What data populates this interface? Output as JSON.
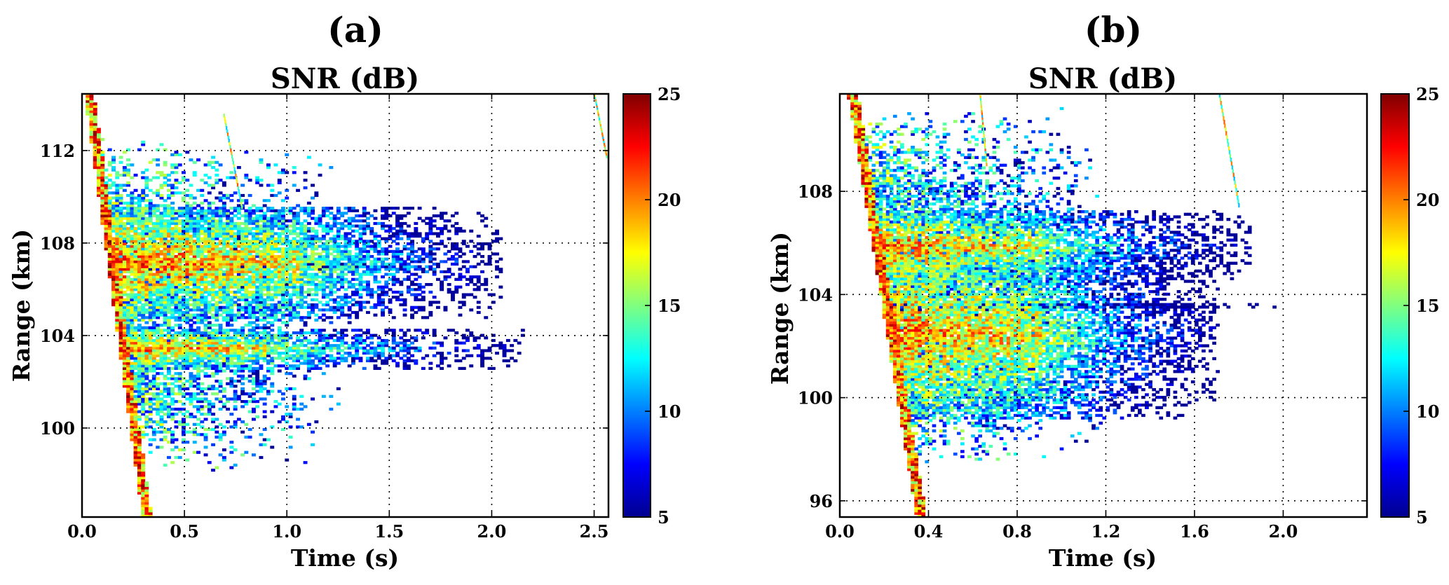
{
  "chart_data": [
    {
      "type": "heatmap",
      "panel_label": "(a)",
      "title": "SNR (dB)",
      "xlabel": "Time (s)",
      "ylabel": "Range (km)",
      "xlim": [
        0.0,
        2.57
      ],
      "ylim": [
        96.15,
        114.45
      ],
      "xticks": [
        0.0,
        0.5,
        1.0,
        1.5,
        2.0,
        2.5
      ],
      "xtick_labels": [
        "0.0",
        "0.5",
        "1.0",
        "1.5",
        "2.0",
        "2.5"
      ],
      "yticks": [
        100,
        104,
        108,
        112
      ],
      "ytick_labels": [
        "100",
        "104",
        "108",
        "112"
      ],
      "grid": true,
      "colormap": "jet",
      "colorbar": {
        "range": [
          5,
          25
        ],
        "ticks": [
          5,
          10,
          15,
          20,
          25
        ],
        "tick_labels": [
          "5",
          "10",
          "15",
          "20",
          "25"
        ],
        "position": "right"
      },
      "cell_size": {
        "time_s": 0.018,
        "range_km": 0.11
      },
      "seed": 11,
      "structure": {
        "leading_edge": {
          "t_top": 0.02,
          "r_top": 114.3,
          "t_bottom": 0.28,
          "r_bottom": 97.4
        },
        "bands": [
          {
            "range_center_km": 107.1,
            "range_halfwidth_km": 1.9,
            "core_end_s": 1.05,
            "tail_end_s": 2.05,
            "peak_snr_db": 25
          },
          {
            "range_center_km": 103.4,
            "range_halfwidth_km": 0.7,
            "core_end_s": 0.9,
            "tail_end_s": 2.15,
            "peak_snr_db": 25
          },
          {
            "range_center_km": 106.9,
            "range_halfwidth_km": 0.12,
            "core_end_s": 1.4,
            "tail_end_s": 2.5,
            "peak_snr_db": 14
          }
        ],
        "diffuse_region": {
          "range_min_km": 98.0,
          "range_max_km": 112.5,
          "time_max_s": 1.3,
          "snr_db": 12
        },
        "streaks": [
          {
            "t0": 0.69,
            "r0": 113.6,
            "t1": 0.78,
            "r1": 109.5
          },
          {
            "t0": 2.5,
            "r0": 114.4,
            "t1": 2.56,
            "r1": 111.7
          }
        ]
      }
    },
    {
      "type": "heatmap",
      "panel_label": "(b)",
      "title": "SNR (dB)",
      "xlabel": "Time (s)",
      "ylabel": "Range (km)",
      "xlim": [
        0.0,
        2.378
      ],
      "ylim": [
        95.37,
        111.78
      ],
      "xticks": [
        0.0,
        0.4,
        0.8,
        1.2,
        1.6,
        2.0
      ],
      "xtick_labels": [
        "0.0",
        "0.4",
        "0.8",
        "1.2",
        "1.6",
        "2.0"
      ],
      "yticks": [
        96,
        100,
        104,
        108
      ],
      "ytick_labels": [
        "96",
        "100",
        "104",
        "108"
      ],
      "grid": true,
      "colormap": "jet",
      "colorbar": {
        "range": [
          5,
          25
        ],
        "ticks": [
          5,
          10,
          15,
          20,
          25
        ],
        "tick_labels": [
          "5",
          "10",
          "15",
          "20",
          "25"
        ],
        "position": "right"
      },
      "cell_size": {
        "time_s": 0.016,
        "range_km": 0.1
      },
      "seed": 29,
      "structure": {
        "leading_edge": {
          "t_top": 0.05,
          "r_top": 111.4,
          "t_bottom": 0.34,
          "r_bottom": 96.0
        },
        "bands": [
          {
            "range_center_km": 105.8,
            "range_halfwidth_km": 1.1,
            "core_end_s": 0.9,
            "tail_end_s": 1.85,
            "peak_snr_db": 25
          },
          {
            "range_center_km": 102.4,
            "range_halfwidth_km": 2.6,
            "core_end_s": 0.9,
            "tail_end_s": 1.7,
            "peak_snr_db": 25
          },
          {
            "range_center_km": 103.5,
            "range_halfwidth_km": 0.12,
            "core_end_s": 1.5,
            "tail_end_s": 2.37,
            "peak_snr_db": 14
          }
        ],
        "diffuse_region": {
          "range_min_km": 97.3,
          "range_max_km": 111.2,
          "time_max_s": 1.2,
          "snr_db": 12
        },
        "streaks": [
          {
            "t0": 0.63,
            "r0": 111.8,
            "t1": 0.66,
            "r1": 109.0
          },
          {
            "t0": 1.71,
            "r0": 111.8,
            "t1": 1.8,
            "r1": 107.4
          }
        ]
      }
    }
  ]
}
